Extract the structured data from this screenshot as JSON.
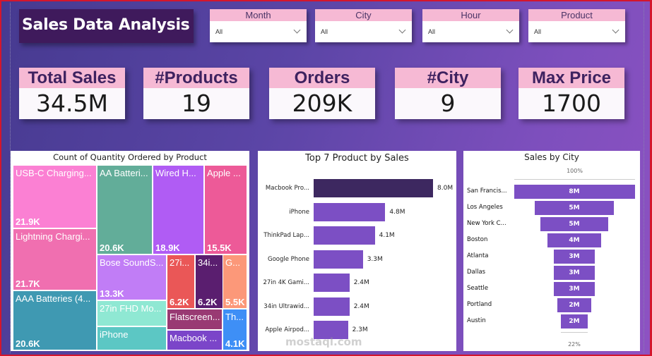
{
  "title": "Sales Data Analysis",
  "slicers": [
    {
      "label": "Month",
      "value": "All"
    },
    {
      "label": "City",
      "value": "All"
    },
    {
      "label": "Hour",
      "value": "All"
    },
    {
      "label": "Product",
      "value": "All"
    }
  ],
  "cards": [
    {
      "label": "Total Sales",
      "value": "34.5M"
    },
    {
      "label": "#Products",
      "value": "19"
    },
    {
      "label": "Orders",
      "value": "209K"
    },
    {
      "label": "#City",
      "value": "9"
    },
    {
      "label": "Max Price",
      "value": "1700"
    }
  ],
  "colors": {
    "accent_bar": "#7c4fc4",
    "top_bar": "#3d2860",
    "header_pink": "#f6b9d4",
    "title_bg": "#3f1a5c"
  },
  "chart_data": [
    {
      "type": "treemap",
      "title": "Count of Quantity Ordered by Product",
      "items": [
        {
          "label": "USB-C Charging...",
          "value": "21.9K",
          "color": "#fb80d3"
        },
        {
          "label": "Lightning Chargi...",
          "value": "21.7K",
          "color": "#f06fb0"
        },
        {
          "label": "AAA Batteries (4...",
          "value": "20.6K",
          "color": "#3f99b2"
        },
        {
          "label": "AA Batteri...",
          "value": "20.6K",
          "color": "#62ad99"
        },
        {
          "label": "Wired H...",
          "value": "18.9K",
          "color": "#b05cf4"
        },
        {
          "label": "Apple ...",
          "value": "15.5K",
          "color": "#ed5a98"
        },
        {
          "label": "Bose SoundS...",
          "value": "13.3K",
          "color": "#c17df6"
        },
        {
          "label": "27in FHD Mo...",
          "value": "",
          "color": "#8fe8d3"
        },
        {
          "label": "iPhone",
          "value": "",
          "color": "#5cc7c4"
        },
        {
          "label": "27i...",
          "value": "6.2K",
          "color": "#ea5757"
        },
        {
          "label": "34i...",
          "value": "6.2K",
          "color": "#5a1e6f"
        },
        {
          "label": "G...",
          "value": "5.5K",
          "color": "#fc9879"
        },
        {
          "label": "Flatscreen...",
          "value": "",
          "color": "#993a73"
        },
        {
          "label": "Macbook ...",
          "value": "",
          "color": "#7b45c9"
        },
        {
          "label": "Th...",
          "value": "4.1K",
          "color": "#3e8ff6"
        }
      ]
    },
    {
      "type": "bar",
      "orientation": "horizontal",
      "title": "Top 7 Product by Sales",
      "categories": [
        "Macbook Pro...",
        "iPhone",
        "ThinkPad Lap...",
        "Google Phone",
        "27in 4K Gami...",
        "34in Ultrawid...",
        "Apple Airpod..."
      ],
      "values": [
        8.0,
        4.8,
        4.1,
        3.3,
        2.4,
        2.4,
        2.3
      ],
      "labels": [
        "8.0M",
        "4.8M",
        "4.1M",
        "3.3M",
        "2.4M",
        "2.4M",
        "2.3M"
      ],
      "xlim": [
        0,
        8.0
      ]
    },
    {
      "type": "funnel",
      "title": "Sales by City",
      "categories": [
        "San Francis...",
        "Los Angeles",
        "New York C...",
        "Boston",
        "Atlanta",
        "Dallas",
        "Seattle",
        "Portland",
        "Austin"
      ],
      "values": [
        8.26,
        5.4,
        4.6,
        3.7,
        2.8,
        2.8,
        2.8,
        2.3,
        1.8
      ],
      "labels": [
        "8M",
        "5M",
        "5M",
        "4M",
        "3M",
        "3M",
        "3M",
        "2M",
        "2M"
      ],
      "top_pct": "100%",
      "bottom_pct": "22%"
    }
  ],
  "watermark": "mostaql.com"
}
